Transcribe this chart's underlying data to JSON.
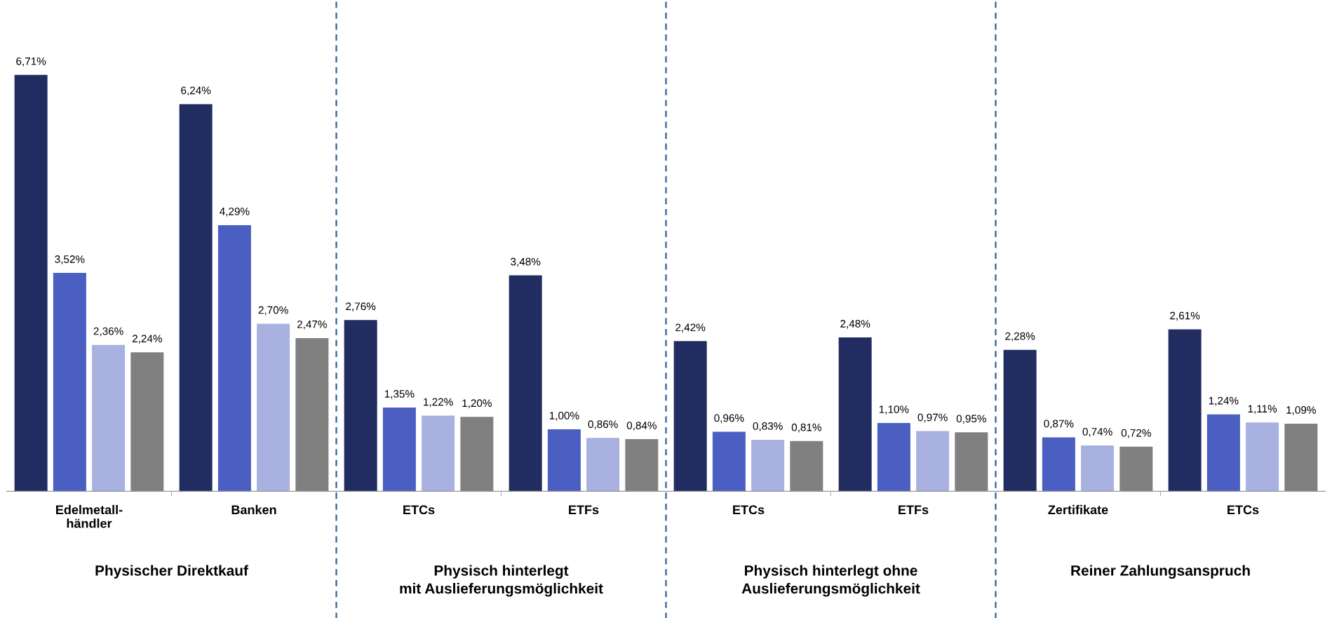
{
  "chart_data": {
    "type": "bar",
    "categories": [
      "Edelmetall-\nhändler",
      "Banken",
      "ETCs",
      "ETFs",
      "ETCs",
      "ETFs",
      "Zertifikate",
      "ETCs"
    ],
    "series": [
      {
        "color": "#212d60",
        "values": [
          6.71,
          6.24,
          2.76,
          3.48,
          2.42,
          2.48,
          2.28,
          2.61
        ],
        "value_labels": [
          "6,71%",
          "6,24%",
          "2,76%",
          "3,48%",
          "2,42%",
          "2,48%",
          "2,28%",
          "2,61%"
        ]
      },
      {
        "color": "#4a5fc1",
        "values": [
          3.52,
          4.29,
          1.35,
          1.0,
          0.96,
          1.1,
          0.87,
          1.24
        ],
        "value_labels": [
          "3,52%",
          "4,29%",
          "1,35%",
          "1,00%",
          "0,96%",
          "1,10%",
          "0,87%",
          "1,24%"
        ]
      },
      {
        "color": "#a8b1e0",
        "values": [
          2.36,
          2.7,
          1.22,
          0.86,
          0.83,
          0.97,
          0.74,
          1.11
        ],
        "value_labels": [
          "2,36%",
          "2,70%",
          "1,22%",
          "0,86%",
          "0,83%",
          "0,97%",
          "0,74%",
          "1,11%"
        ]
      },
      {
        "color": "#808080",
        "values": [
          2.24,
          2.47,
          1.2,
          0.84,
          0.81,
          0.95,
          0.72,
          1.09
        ],
        "value_labels": [
          "2,24%",
          "2,47%",
          "1,20%",
          "0,84%",
          "0,81%",
          "0,95%",
          "0,72%",
          "1,09%"
        ]
      }
    ],
    "annotations": [
      "Physischer Direktkauf",
      "Physisch hinterlegt\nmit Auslieferungsmöglichkeit",
      "Physisch hinterlegt ohne\nAuslieferungsmöglichkeit",
      "Reiner Zahlungsanspruch"
    ],
    "grid": false,
    "legend": false
  }
}
